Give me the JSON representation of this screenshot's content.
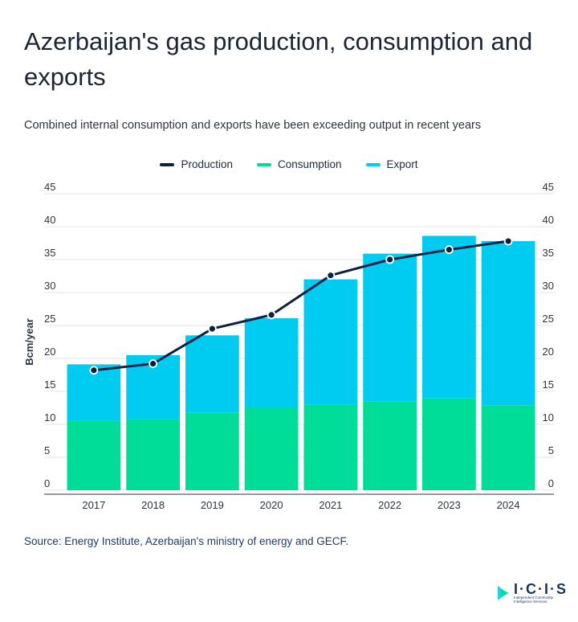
{
  "header": {
    "title": "Azerbaijan's gas production, consumption and exports",
    "subtitle": "Combined internal consumption and exports have been exceeding output in recent years"
  },
  "legend": [
    {
      "label": "Production",
      "color": "#0d2240"
    },
    {
      "label": "Consumption",
      "color": "#00dd99"
    },
    {
      "label": "Export",
      "color": "#00ccf2"
    }
  ],
  "footer": {
    "source": "Source: Energy Institute, Azerbaijan's ministry of energy and GECF.",
    "logo_text": "I·C·I·S",
    "logo_tagline": "Independent Commodity Intelligence Services"
  },
  "chart_data": {
    "type": "bar",
    "stacked": true,
    "categories": [
      "2017",
      "2018",
      "2019",
      "2020",
      "2021",
      "2022",
      "2023",
      "2024"
    ],
    "series": [
      {
        "name": "Consumption",
        "type": "bar",
        "color": "#00dd99",
        "values": [
          10.5,
          10.8,
          11.8,
          12.5,
          13.0,
          13.5,
          14.0,
          12.9
        ]
      },
      {
        "name": "Export",
        "type": "bar",
        "color": "#00ccf2",
        "values": [
          8.6,
          9.7,
          11.7,
          13.6,
          19.0,
          22.4,
          24.6,
          24.9
        ]
      },
      {
        "name": "Production",
        "type": "line",
        "color": "#0d2240",
        "values": [
          18.2,
          19.2,
          24.5,
          26.6,
          32.6,
          35.0,
          36.5,
          37.8
        ]
      }
    ],
    "ylabel": "Bcm/year",
    "xlabel": "",
    "ylim": [
      0,
      45
    ],
    "yticks": [
      0,
      5,
      10,
      15,
      20,
      25,
      30,
      35,
      40,
      45
    ],
    "grid": true,
    "legend_position": "top-center",
    "secondary_y_axis": true
  }
}
